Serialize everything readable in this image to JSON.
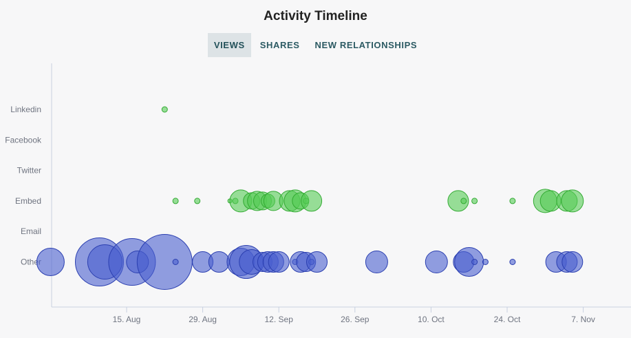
{
  "title": "Activity Timeline",
  "tabs": [
    {
      "label": "VIEWS",
      "active": true
    },
    {
      "label": "SHARES",
      "active": false
    },
    {
      "label": "NEW RELATIONSHIPS",
      "active": false
    }
  ],
  "colors": {
    "views_fill": "#4a5fcf",
    "views_stroke": "#2b3fb0",
    "shares_fill": "#55cc55",
    "shares_stroke": "#33aa33",
    "axis": "#c8d0e0"
  },
  "chart_data": {
    "type": "scatter",
    "title": "Activity Timeline",
    "y_categories": [
      "Linkedin",
      "Facebook",
      "Twitter",
      "Embed",
      "Email",
      "Other"
    ],
    "x_ticks": [
      "15. Aug",
      "29. Aug",
      "12. Sep",
      "26. Sep",
      "10. Oct",
      "24. Oct",
      "7. Nov"
    ],
    "x_tick_dates": [
      "2023-08-15",
      "2023-08-29",
      "2023-09-12",
      "2023-09-26",
      "2023-10-10",
      "2023-10-24",
      "2023-11-07"
    ],
    "xlim": [
      "2023-08-01",
      "2023-11-12"
    ],
    "grid": false,
    "series": [
      {
        "color": "green",
        "points": [
          {
            "x": "2023-08-22",
            "y": "Linkedin",
            "size": 4
          },
          {
            "x": "2023-08-24",
            "y": "Embed",
            "size": 4
          },
          {
            "x": "2023-08-28",
            "y": "Embed",
            "size": 4
          },
          {
            "x": "2023-09-03",
            "y": "Embed",
            "size": 3
          },
          {
            "x": "2023-09-04",
            "y": "Embed",
            "size": 4
          },
          {
            "x": "2023-09-05",
            "y": "Embed",
            "size": 16
          },
          {
            "x": "2023-09-07",
            "y": "Embed",
            "size": 12
          },
          {
            "x": "2023-09-08",
            "y": "Embed",
            "size": 14
          },
          {
            "x": "2023-09-09",
            "y": "Embed",
            "size": 13
          },
          {
            "x": "2023-09-10",
            "y": "Embed",
            "size": 10
          },
          {
            "x": "2023-09-11",
            "y": "Embed",
            "size": 14
          },
          {
            "x": "2023-09-14",
            "y": "Embed",
            "size": 15
          },
          {
            "x": "2023-09-15",
            "y": "Embed",
            "size": 16
          },
          {
            "x": "2023-09-16",
            "y": "Embed",
            "size": 12
          },
          {
            "x": "2023-09-17",
            "y": "Embed",
            "size": 4
          },
          {
            "x": "2023-09-18",
            "y": "Embed",
            "size": 15
          },
          {
            "x": "2023-10-15",
            "y": "Embed",
            "size": 15
          },
          {
            "x": "2023-10-16",
            "y": "Embed",
            "size": 4
          },
          {
            "x": "2023-10-18",
            "y": "Embed",
            "size": 4
          },
          {
            "x": "2023-10-25",
            "y": "Embed",
            "size": 4
          },
          {
            "x": "2023-10-31",
            "y": "Embed",
            "size": 17
          },
          {
            "x": "2023-11-01",
            "y": "Embed",
            "size": 15
          },
          {
            "x": "2023-11-04",
            "y": "Embed",
            "size": 15
          },
          {
            "x": "2023-11-05",
            "y": "Embed",
            "size": 16
          }
        ]
      },
      {
        "color": "blue",
        "points": [
          {
            "x": "2023-08-01",
            "y": "Other",
            "size": 20
          },
          {
            "x": "2023-08-10",
            "y": "Other",
            "size": 35
          },
          {
            "x": "2023-08-11",
            "y": "Other",
            "size": 25
          },
          {
            "x": "2023-08-16",
            "y": "Other",
            "size": 34
          },
          {
            "x": "2023-08-17",
            "y": "Other",
            "size": 16
          },
          {
            "x": "2023-08-22",
            "y": "Other",
            "size": 40
          },
          {
            "x": "2023-08-24",
            "y": "Other",
            "size": 4
          },
          {
            "x": "2023-08-29",
            "y": "Other",
            "size": 15
          },
          {
            "x": "2023-09-01",
            "y": "Other",
            "size": 15
          },
          {
            "x": "2023-09-05",
            "y": "Other",
            "size": 20
          },
          {
            "x": "2023-09-06",
            "y": "Other",
            "size": 24
          },
          {
            "x": "2023-09-07",
            "y": "Other",
            "size": 18
          },
          {
            "x": "2023-09-09",
            "y": "Other",
            "size": 14
          },
          {
            "x": "2023-09-10",
            "y": "Other",
            "size": 15
          },
          {
            "x": "2023-09-11",
            "y": "Other",
            "size": 15
          },
          {
            "x": "2023-09-12",
            "y": "Other",
            "size": 15
          },
          {
            "x": "2023-09-15",
            "y": "Other",
            "size": 4
          },
          {
            "x": "2023-09-16",
            "y": "Other",
            "size": 15
          },
          {
            "x": "2023-09-17",
            "y": "Other",
            "size": 14
          },
          {
            "x": "2023-09-18",
            "y": "Other",
            "size": 4
          },
          {
            "x": "2023-09-19",
            "y": "Other",
            "size": 15
          },
          {
            "x": "2023-09-30",
            "y": "Other",
            "size": 16
          },
          {
            "x": "2023-10-11",
            "y": "Other",
            "size": 16
          },
          {
            "x": "2023-10-16",
            "y": "Other",
            "size": 15
          },
          {
            "x": "2023-10-17",
            "y": "Other",
            "size": 21
          },
          {
            "x": "2023-10-18",
            "y": "Other",
            "size": 4
          },
          {
            "x": "2023-10-20",
            "y": "Other",
            "size": 4
          },
          {
            "x": "2023-10-25",
            "y": "Other",
            "size": 4
          },
          {
            "x": "2023-11-02",
            "y": "Other",
            "size": 15
          },
          {
            "x": "2023-11-04",
            "y": "Other",
            "size": 15
          },
          {
            "x": "2023-11-05",
            "y": "Other",
            "size": 15
          }
        ]
      }
    ]
  }
}
